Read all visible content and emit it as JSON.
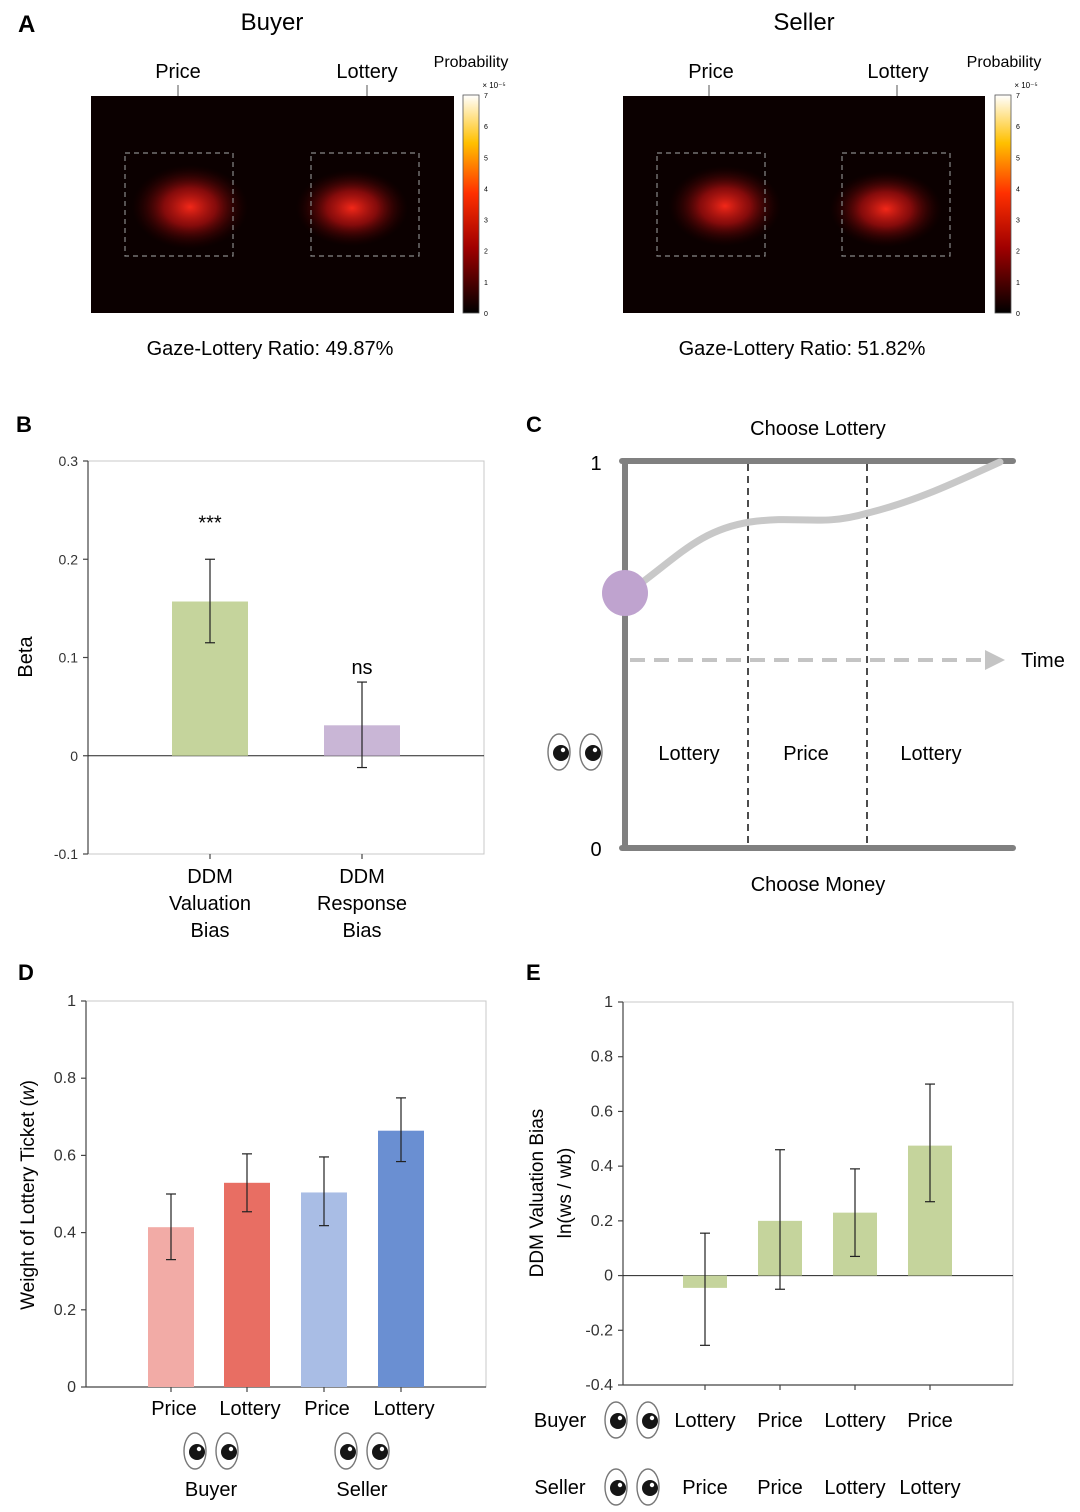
{
  "colors": {
    "heat_bg": "#0b0000",
    "heat_blob": "#c81010",
    "green": "#c5d49c",
    "purple": "#c9b6d6",
    "pink": "#f2aba6",
    "red": "#e86e63",
    "light_blue": "#a9bde5",
    "blue": "#6a8fd2",
    "axis": "#444444",
    "panel_c_line": "#808080",
    "panel_c_path": "#c8c8c8",
    "purple_dot": "#bfa3cf"
  },
  "panel_a": {
    "label": "A",
    "colorbar_label": "Probability",
    "colorbar_scale": "× 10⁻⁵",
    "colorbar_ticks": [
      "0",
      "1",
      "2",
      "3",
      "4",
      "5",
      "6",
      "7"
    ],
    "maps": [
      {
        "title": "Buyer",
        "aoi_labels": [
          "Price",
          "Lottery"
        ],
        "caption": "Gaze-Lottery Ratio: 49.87%"
      },
      {
        "title": "Seller",
        "aoi_labels": [
          "Price",
          "Lottery"
        ],
        "caption": "Gaze-Lottery Ratio: 51.82%"
      }
    ]
  },
  "chart_data": [
    {
      "panel": "B",
      "type": "bar",
      "categories": [
        "DDM\nValuation\nBias",
        "DDM\nResponse\nBias"
      ],
      "values": [
        0.157,
        0.031
      ],
      "errors_low": [
        0.115,
        -0.012
      ],
      "errors_high": [
        0.2,
        0.075
      ],
      "annotations": [
        "***",
        "ns"
      ],
      "ylabel": "Beta",
      "ylim": [
        -0.1,
        0.3
      ],
      "yticks": [
        "-0.1",
        "0",
        "0.1",
        "0.2",
        "0.3"
      ],
      "bar_colors": [
        "#c5d49c",
        "#c9b6d6"
      ]
    },
    {
      "panel": "C",
      "type": "diagram",
      "top_label": "Choose Lottery",
      "bottom_label": "Choose Money",
      "y_top": "1",
      "y_bottom": "0",
      "time_label": "Time",
      "segments": [
        "Lottery",
        "Price",
        "Lottery"
      ]
    },
    {
      "panel": "D",
      "type": "bar",
      "categories": [
        "Price",
        "Lottery",
        "Price",
        "Lottery"
      ],
      "groups": [
        "Buyer",
        "Seller"
      ],
      "values": [
        0.414,
        0.529,
        0.504,
        0.664
      ],
      "errors_low": [
        0.33,
        0.454,
        0.418,
        0.584
      ],
      "errors_high": [
        0.5,
        0.604,
        0.596,
        0.749
      ],
      "ylabel": "Weight of Lottery Ticket (w)",
      "ylim": [
        0,
        1
      ],
      "yticks": [
        "0",
        "0.2",
        "0.4",
        "0.6",
        "0.8",
        "1"
      ],
      "bar_colors": [
        "#f2aba6",
        "#e86e63",
        "#a9bde5",
        "#6a8fd2"
      ]
    },
    {
      "panel": "E",
      "type": "bar",
      "values": [
        -0.045,
        0.2,
        0.23,
        0.475
      ],
      "errors_low": [
        -0.255,
        -0.05,
        0.07,
        0.27
      ],
      "errors_high": [
        0.155,
        0.46,
        0.39,
        0.7
      ],
      "row_labels": [
        "Buyer",
        "Seller"
      ],
      "buyer_categories": [
        "Lottery",
        "Price",
        "Lottery",
        "Price"
      ],
      "seller_categories": [
        "Price",
        "Price",
        "Lottery",
        "Lottery"
      ],
      "ylabel_line1": "DDM Valuation Bias",
      "ylabel_line2": "ln(ws / wb)",
      "ylim": [
        -0.4,
        1
      ],
      "yticks": [
        "-0.4",
        "-0.2",
        "0",
        "0.2",
        "0.4",
        "0.6",
        "0.8",
        "1"
      ],
      "bar_color": "#c5d49c"
    }
  ]
}
